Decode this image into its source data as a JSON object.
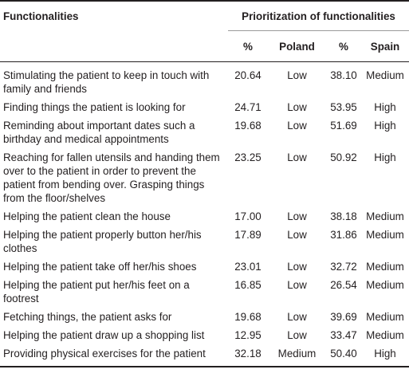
{
  "headers": {
    "functionalities": "Functionalities",
    "prioritization": "Prioritization of functionalities",
    "percent_poland": "%",
    "poland": "Poland",
    "percent_spain": "%",
    "spain": "Spain"
  },
  "rows": [
    {
      "functionality": "Stimulating the patient to keep in touch with family and friends",
      "poland_pct": "20.64",
      "poland_level": "Low",
      "spain_pct": "38.10",
      "spain_level": "Medium"
    },
    {
      "functionality": "Finding things the patient is looking for",
      "poland_pct": "24.71",
      "poland_level": "Low",
      "spain_pct": "53.95",
      "spain_level": "High"
    },
    {
      "functionality": "Reminding about important dates such a birthday and medical appointments",
      "poland_pct": "19.68",
      "poland_level": "Low",
      "spain_pct": "51.69",
      "spain_level": "High"
    },
    {
      "functionality": "Reaching for fallen utensils and handing them over to the patient in order to prevent the patient from bending over. Grasping things from the floor/shelves",
      "poland_pct": "23.25",
      "poland_level": "Low",
      "spain_pct": "50.92",
      "spain_level": "High"
    },
    {
      "functionality": "Helping the patient clean the house",
      "poland_pct": "17.00",
      "poland_level": "Low",
      "spain_pct": "38.18",
      "spain_level": "Medium"
    },
    {
      "functionality": "Helping the patient properly button her/his clothes",
      "poland_pct": "17.89",
      "poland_level": "Low",
      "spain_pct": "31.86",
      "spain_level": "Medium"
    },
    {
      "functionality": "Helping the patient take off her/his shoes",
      "poland_pct": "23.01",
      "poland_level": "Low",
      "spain_pct": "32.72",
      "spain_level": "Medium"
    },
    {
      "functionality": "Helping the patient put her/his feet on a footrest",
      "poland_pct": "16.85",
      "poland_level": "Low",
      "spain_pct": "26.54",
      "spain_level": "Medium"
    },
    {
      "functionality": "Fetching things, the patient asks for",
      "poland_pct": "19.68",
      "poland_level": "Low",
      "spain_pct": "39.69",
      "spain_level": "Medium"
    },
    {
      "functionality": "Helping the patient draw up a shopping list",
      "poland_pct": "12.95",
      "poland_level": "Low",
      "spain_pct": "33.47",
      "spain_level": "Medium"
    },
    {
      "functionality": "Providing physical exercises for the patient",
      "poland_pct": "32.18",
      "poland_level": "Medium",
      "spain_pct": "50.40",
      "spain_level": "High"
    }
  ]
}
